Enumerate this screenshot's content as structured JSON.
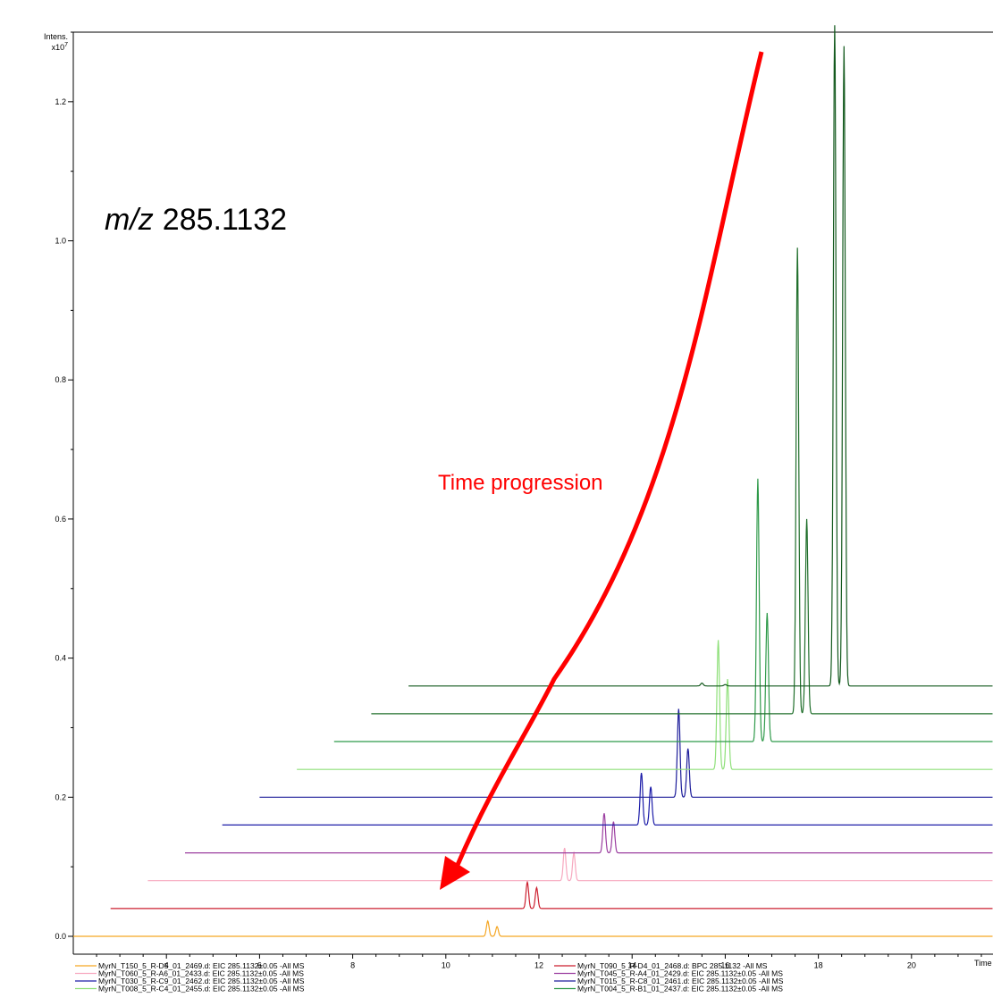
{
  "chart_data": {
    "type": "line",
    "title": "",
    "ylabel_line1": "Intens.",
    "ylabel_line2": "x10",
    "ylabel_exp": "7",
    "xlabel": "Time",
    "xlim": [
      2.0,
      21.75
    ],
    "ylim": [
      0.0,
      1.3
    ],
    "xticks": [
      4,
      6,
      8,
      10,
      12,
      14,
      16,
      18,
      20
    ],
    "yticks_labeled": [
      "0.0",
      "0.2",
      "0.4",
      "0.6",
      "0.8",
      "1.0",
      "1.2"
    ],
    "yticks_values": [
      0.0,
      0.2,
      0.4,
      0.6,
      0.8,
      1.0,
      1.2
    ],
    "annotation_mz_prefix": "m/z",
    "annotation_mz_value": "285.1132",
    "arrow_label": "Time progression",
    "arrow_color": "#ff0000",
    "legend_placement": "bottom",
    "series": [
      {
        "name": "MyrN_T150_5_R-D5_01_2469.d: EIC 285.1132±0.05 -All MS",
        "color": "#f5a623",
        "x_start": 2.0,
        "baseline": 0.0,
        "peaks": [
          [
            10.9,
            0.022
          ],
          [
            11.1,
            0.014
          ]
        ]
      },
      {
        "name": "MyrN_T090_5_R-D4_01_2468.d: BPC 285.1132 -All MS",
        "color": "#cc1f2f",
        "x_start": 2.8,
        "baseline": 0.04,
        "peaks": [
          [
            11.75,
            0.038
          ],
          [
            11.95,
            0.03
          ]
        ]
      },
      {
        "name": "MyrN_T060_5_R-A6_01_2433.d: EIC 285.1132±0.05 -All MS",
        "color": "#f7a8bf",
        "x_start": 3.6,
        "baseline": 0.08,
        "peaks": [
          [
            12.55,
            0.047
          ],
          [
            12.75,
            0.04
          ]
        ]
      },
      {
        "name": "MyrN_T045_5_R-A4_01_2429.d: EIC 285.1132±0.05 -All MS",
        "color": "#9b3ea0",
        "x_start": 4.4,
        "baseline": 0.12,
        "peaks": [
          [
            13.4,
            0.057
          ],
          [
            13.6,
            0.045
          ]
        ]
      },
      {
        "name": "MyrN_T030_5_R-C9_01_2462.d: EIC 285.1132±0.05 -All MS",
        "color": "#1c1ca8",
        "x_start": 5.2,
        "baseline": 0.16,
        "peaks": [
          [
            14.2,
            0.075
          ],
          [
            14.4,
            0.055
          ]
        ]
      },
      {
        "name": "MyrN_T015_5_R-C8_01_2461.d: EIC 285.1132±0.05 -All MS",
        "color": "#1c1c9a",
        "x_start": 6.0,
        "baseline": 0.2,
        "peaks": [
          [
            15.0,
            0.127
          ],
          [
            15.2,
            0.07
          ]
        ]
      },
      {
        "name": "MyrN_T008_5_R-C4_01_2455.d: EIC 285.1132±0.05 -All MS",
        "color": "#8fe07a",
        "x_start": 6.8,
        "baseline": 0.24,
        "peaks": [
          [
            15.85,
            0.186
          ],
          [
            16.05,
            0.13
          ]
        ]
      },
      {
        "name": "MyrN_T004_5_R-B1_01_2437.d: EIC 285.1132±0.05 -All MS",
        "color": "#2f9a4a",
        "x_start": 7.6,
        "baseline": 0.28,
        "peaks": [
          [
            16.7,
            0.378
          ],
          [
            16.9,
            0.185
          ]
        ]
      },
      {
        "name": "",
        "color": "#1f6e2a",
        "x_start": 8.4,
        "baseline": 0.32,
        "peaks": [
          [
            17.55,
            0.67
          ],
          [
            17.75,
            0.28
          ]
        ]
      },
      {
        "name": "",
        "color": "#145a1e",
        "x_start": 9.2,
        "baseline": 0.36,
        "peaks": [
          [
            18.35,
            0.95
          ],
          [
            18.55,
            0.92
          ],
          [
            15.5,
            0.004
          ],
          [
            16.0,
            0.002
          ]
        ]
      }
    ]
  }
}
